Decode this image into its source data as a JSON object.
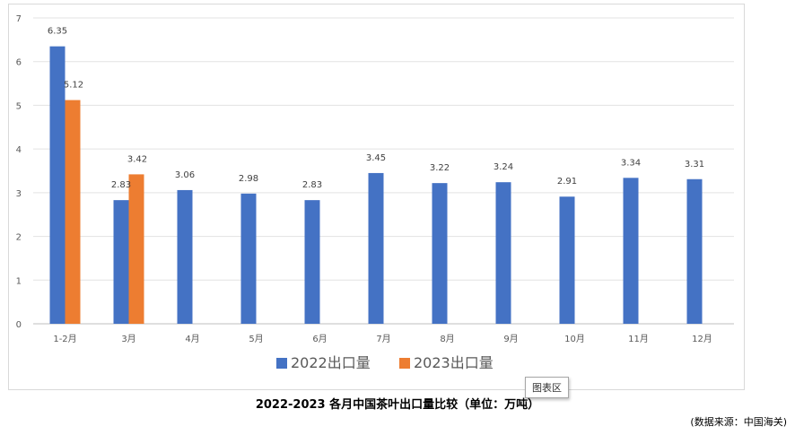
{
  "chart_data": {
    "type": "bar",
    "categories": [
      "1-2月",
      "3月",
      "4月",
      "5月",
      "6月",
      "7月",
      "8月",
      "9月",
      "10月",
      "11月",
      "12月"
    ],
    "series": [
      {
        "name": "2022出口量",
        "color": "#4472c4",
        "values": [
          6.35,
          2.83,
          3.06,
          2.98,
          2.83,
          3.45,
          3.22,
          3.24,
          2.91,
          3.34,
          3.31
        ]
      },
      {
        "name": "2023出口量",
        "color": "#ed7d31",
        "values": [
          5.12,
          3.42,
          null,
          null,
          null,
          null,
          null,
          null,
          null,
          null,
          null
        ]
      }
    ],
    "ylim": [
      0,
      7
    ],
    "yticks": [
      0,
      1,
      2,
      3,
      4,
      5,
      6,
      7
    ],
    "grid": true,
    "legend_position": "bottom",
    "title": "2022-2023 各月中国茶叶出口量比较（单位：万吨）",
    "source": "(数据来源：中国海关)"
  },
  "tooltip": "图表区"
}
